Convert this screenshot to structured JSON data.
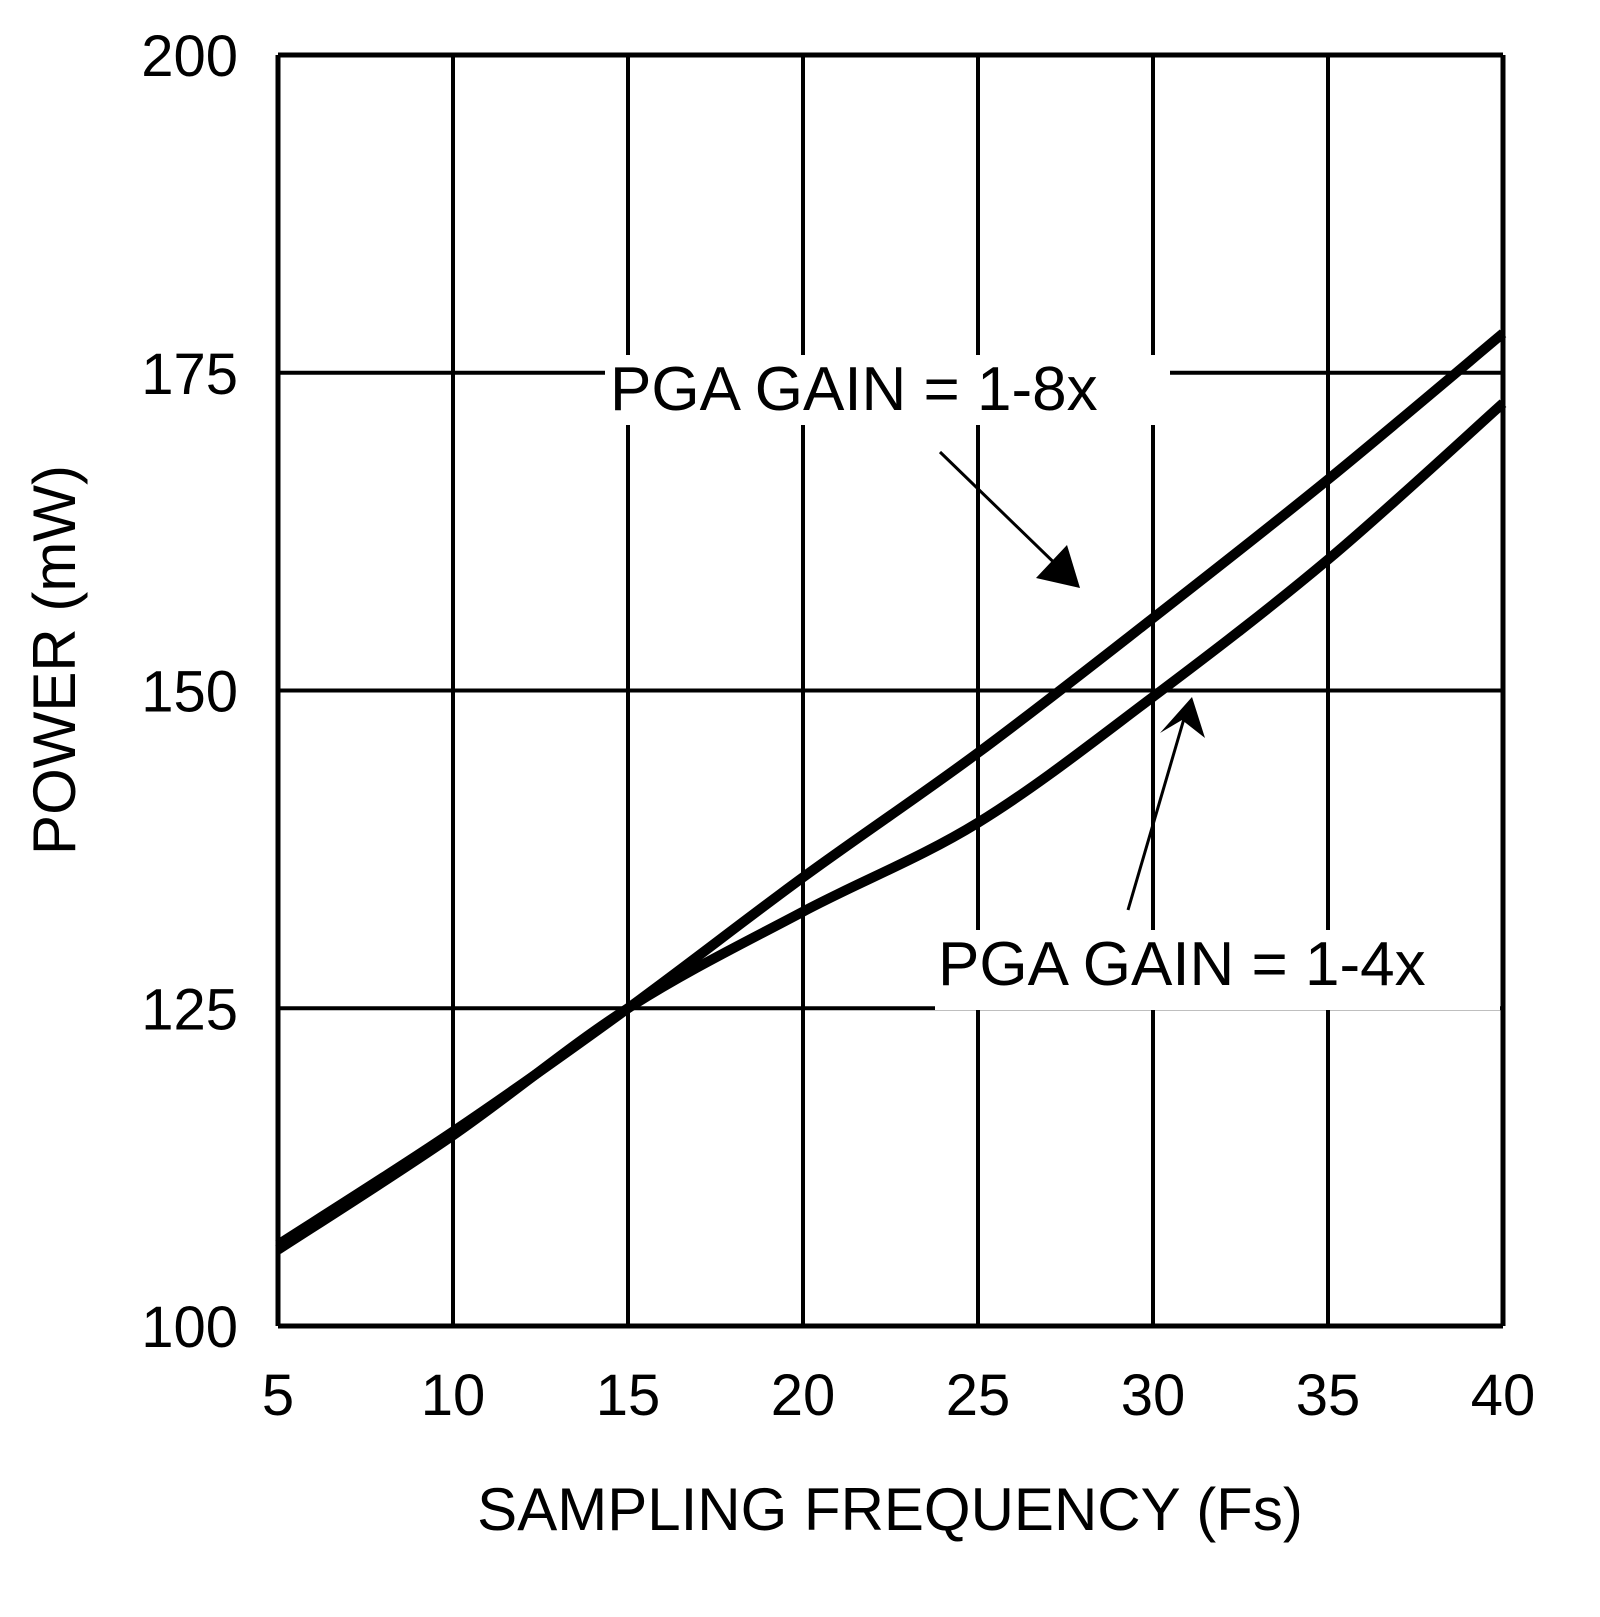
{
  "chart_data": {
    "type": "line",
    "title": "",
    "xlabel": "SAMPLING FREQUENCY (Fs)",
    "ylabel": "POWER (mW)",
    "xlim": [
      5,
      40
    ],
    "ylim": [
      100,
      200
    ],
    "xticks": [
      5,
      10,
      15,
      20,
      25,
      30,
      35,
      40
    ],
    "yticks": [
      100,
      125,
      150,
      175,
      200
    ],
    "grid": true,
    "x": [
      5,
      10,
      15,
      20,
      25,
      30,
      35,
      40
    ],
    "series": [
      {
        "name": "PGA GAIN = 1-8x",
        "values": [
          106.4,
          115.3,
          125,
          135.3,
          145.1,
          155.7,
          166.6,
          178.1
        ]
      },
      {
        "name": "PGA GAIN = 1-4x",
        "values": [
          106,
          115,
          125,
          132.6,
          139.6,
          149.5,
          160.3,
          172.6
        ]
      }
    ],
    "color": "#000000"
  }
}
